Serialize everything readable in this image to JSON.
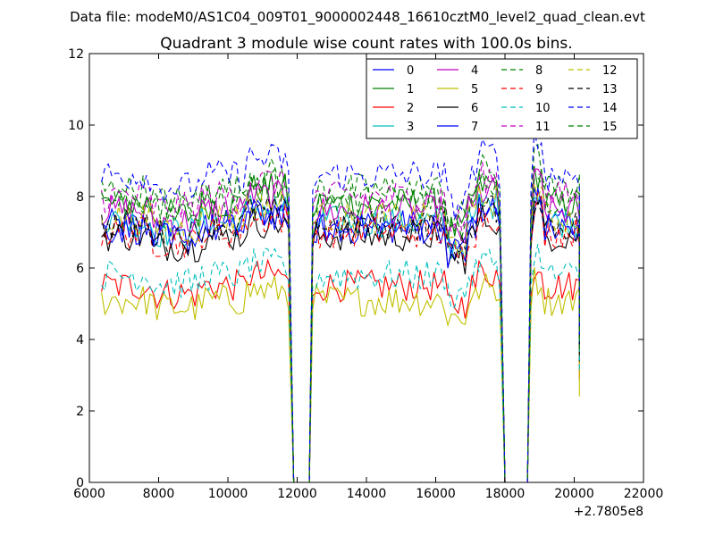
{
  "chart_data": {
    "type": "line",
    "suptitle": "Data file: modeM0/AS1C04_009T01_9000002448_16610cztM0_level2_quad_clean.evt",
    "title": "Quadrant 3 module wise count rates with 100.0s bins.",
    "xlabel": "",
    "ylabel": "",
    "x_offset_label": "+2.7805e8",
    "xlim": [
      6000,
      22000
    ],
    "ylim": [
      0,
      12
    ],
    "xticks": [
      6000,
      8000,
      10000,
      12000,
      14000,
      16000,
      18000,
      20000,
      22000
    ],
    "yticks": [
      0,
      2,
      4,
      6,
      8,
      10,
      12
    ],
    "grid": false,
    "legend_position": "top-right",
    "legend_columns": 4,
    "time_segments": [
      [
        6350,
        11750
      ],
      [
        12450,
        17850
      ],
      [
        18750,
        20150
      ]
    ],
    "series": [
      {
        "name": "0",
        "color": "#0000ff",
        "dash": "solid",
        "level": 7.2
      },
      {
        "name": "1",
        "color": "#008000",
        "dash": "solid",
        "level": 7.8
      },
      {
        "name": "2",
        "color": "#ff0000",
        "dash": "solid",
        "level": 5.5
      },
      {
        "name": "3",
        "color": "#00bfbf",
        "dash": "solid",
        "level": 7.3
      },
      {
        "name": "4",
        "color": "#bf00bf",
        "dash": "solid",
        "level": 7.6
      },
      {
        "name": "5",
        "color": "#bfbf00",
        "dash": "solid",
        "level": 5.1
      },
      {
        "name": "6",
        "color": "#000000",
        "dash": "solid",
        "level": 6.9
      },
      {
        "name": "7",
        "color": "#0000ff",
        "dash": "solid",
        "level": 7.1
      },
      {
        "name": "8",
        "color": "#008000",
        "dash": "dashed",
        "level": 8.2
      },
      {
        "name": "9",
        "color": "#ff0000",
        "dash": "dashed",
        "level": 7.0
      },
      {
        "name": "10",
        "color": "#00bfbf",
        "dash": "dashed",
        "level": 5.8
      },
      {
        "name": "11",
        "color": "#bf00bf",
        "dash": "dashed",
        "level": 8.0
      },
      {
        "name": "12",
        "color": "#bfbf00",
        "dash": "dashed",
        "level": 7.4
      },
      {
        "name": "13",
        "color": "#000000",
        "dash": "dashed",
        "level": 7.2
      },
      {
        "name": "14",
        "color": "#0000ff",
        "dash": "dashed",
        "level": 8.6
      },
      {
        "name": "15",
        "color": "#008000",
        "dash": "dashed",
        "level": 7.9
      }
    ]
  }
}
